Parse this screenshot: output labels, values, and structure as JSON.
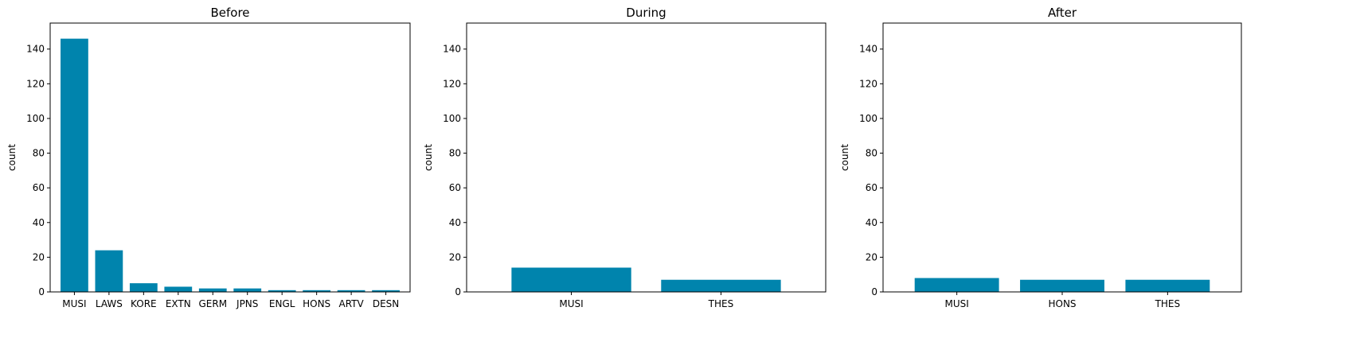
{
  "colors": {
    "bar": "#0084ad",
    "axis": "#000000",
    "background": "#ffffff"
  },
  "chart_data": [
    {
      "type": "bar",
      "title": "Before",
      "xlabel": "",
      "ylabel": "count",
      "ylim": [
        0,
        155
      ],
      "yticks": [
        0,
        20,
        40,
        60,
        80,
        100,
        120,
        140
      ],
      "grid": false,
      "categories": [
        "MUSI",
        "LAWS",
        "KORE",
        "EXTN",
        "GERM",
        "JPNS",
        "ENGL",
        "HONS",
        "ARTV",
        "DESN"
      ],
      "values": [
        146,
        24,
        5,
        3,
        2,
        2,
        1,
        1,
        1,
        1
      ]
    },
    {
      "type": "bar",
      "title": "During",
      "xlabel": "",
      "ylabel": "count",
      "ylim": [
        0,
        155
      ],
      "yticks": [
        0,
        20,
        40,
        60,
        80,
        100,
        120,
        140
      ],
      "grid": false,
      "categories": [
        "MUSI",
        "THES"
      ],
      "values": [
        14,
        7
      ]
    },
    {
      "type": "bar",
      "title": "After",
      "xlabel": "",
      "ylabel": "count",
      "ylim": [
        0,
        155
      ],
      "yticks": [
        0,
        20,
        40,
        60,
        80,
        100,
        120,
        140
      ],
      "grid": false,
      "categories": [
        "MUSI",
        "HONS",
        "THES"
      ],
      "values": [
        8,
        7,
        7
      ]
    }
  ]
}
